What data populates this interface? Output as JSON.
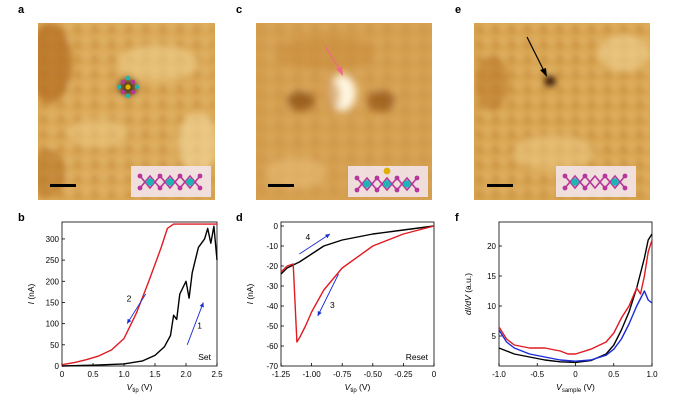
{
  "panel_labels": [
    "a",
    "b",
    "c",
    "d",
    "e",
    "f"
  ],
  "images": [
    {
      "label": "a",
      "marker": "atom-cluster"
    },
    {
      "label": "c",
      "marker": "pink-arrow"
    },
    {
      "label": "e",
      "marker": "black-arrow"
    }
  ],
  "colors": {
    "red": "#e01b22",
    "black": "#000000",
    "blue": "#1a2bd6",
    "stm_base": "#d9a24a",
    "inset_teal": "#1fb5b5",
    "inset_magenta": "#b7369c",
    "inset_gold": "#e0b000"
  },
  "chart_data": [
    {
      "label": "b",
      "type": "line",
      "xlabel_main": "V",
      "xlabel_sub": "tip",
      "xlabel_unit": " (V)",
      "ylabel_main": "I",
      "ylabel_unit": " (nA)",
      "xlim": [
        0,
        2.5
      ],
      "ylim": [
        0,
        340
      ],
      "xticks": [
        "0",
        "0.5",
        "1.0",
        "1.5",
        "2.0",
        "2.5"
      ],
      "xtick_values": [
        0,
        0.5,
        1.0,
        1.5,
        2.0,
        2.5
      ],
      "yticks": [
        "0",
        "50",
        "100",
        "150",
        "200",
        "250",
        "300"
      ],
      "ytick_values": [
        0,
        50,
        100,
        150,
        200,
        250,
        300
      ],
      "annotation": "Set",
      "arrows": [
        {
          "text": "2",
          "color": "#1a2bd6",
          "from": [
            1.35,
            170
          ],
          "to": [
            1.05,
            100
          ],
          "text_at": [
            1.08,
            152
          ]
        },
        {
          "text": "1",
          "color": "#1a2bd6",
          "from": [
            2.02,
            50
          ],
          "to": [
            2.28,
            150
          ],
          "text_at": [
            2.22,
            88
          ]
        }
      ],
      "series": [
        {
          "color": "#e01b22",
          "x": [
            0,
            0.2,
            0.4,
            0.6,
            0.8,
            1.0,
            1.2,
            1.4,
            1.6,
            1.7,
            1.8,
            2.0,
            2.2,
            2.4,
            2.5
          ],
          "y": [
            3,
            8,
            15,
            24,
            38,
            65,
            125,
            200,
            280,
            325,
            335,
            335,
            335,
            335,
            335
          ]
        },
        {
          "color": "#000000",
          "x": [
            0,
            0.5,
            1.0,
            1.3,
            1.5,
            1.65,
            1.75,
            1.8,
            1.85,
            1.9,
            2.0,
            2.05,
            2.1,
            2.2,
            2.3,
            2.35,
            2.4,
            2.45,
            2.5
          ],
          "y": [
            0,
            2,
            5,
            12,
            25,
            45,
            72,
            120,
            110,
            170,
            200,
            160,
            220,
            280,
            300,
            325,
            290,
            330,
            250
          ]
        }
      ]
    },
    {
      "label": "d",
      "type": "line",
      "xlabel_main": "V",
      "xlabel_sub": "tip",
      "xlabel_unit": " (V)",
      "ylabel_main": "I",
      "ylabel_unit": " (nA)",
      "xlim": [
        -1.25,
        0
      ],
      "ylim": [
        -70,
        2
      ],
      "xticks": [
        "-1.25",
        "-1.00",
        "-0.75",
        "-0.50",
        "-0.25",
        "0"
      ],
      "xtick_values": [
        -1.25,
        -1.0,
        -0.75,
        -0.5,
        -0.25,
        0
      ],
      "yticks": [
        "0",
        "-10",
        "-20",
        "-30",
        "-40",
        "-50",
        "-60",
        "-70"
      ],
      "ytick_values": [
        0,
        -10,
        -20,
        -30,
        -40,
        -50,
        -60,
        -70
      ],
      "annotation": "Reset",
      "arrows": [
        {
          "text": "4",
          "color": "#1a2bd6",
          "from": [
            -1.1,
            -14
          ],
          "to": [
            -0.85,
            -4
          ],
          "text_at": [
            -1.03,
            -7
          ]
        },
        {
          "text": "3",
          "color": "#1a2bd6",
          "from": [
            -0.78,
            -24
          ],
          "to": [
            -0.95,
            -45
          ],
          "text_at": [
            -0.83,
            -41
          ]
        }
      ],
      "series": [
        {
          "color": "#000000",
          "x": [
            -1.25,
            -1.2,
            -1.1,
            -1.0,
            -0.9,
            -0.75,
            -0.5,
            -0.25,
            0
          ],
          "y": [
            -24,
            -21,
            -18,
            -14,
            -10,
            -7,
            -4,
            -2,
            0
          ]
        },
        {
          "color": "#e01b22",
          "x": [
            -1.25,
            -1.2,
            -1.15,
            -1.12,
            -1.1,
            -1.05,
            -1.0,
            -0.9,
            -0.75,
            -0.5,
            -0.25,
            0
          ],
          "y": [
            -23,
            -20,
            -19,
            -58,
            -56,
            -50,
            -43,
            -32,
            -21,
            -10,
            -4,
            0
          ]
        }
      ]
    },
    {
      "label": "f",
      "type": "line",
      "xlabel_main": "V",
      "xlabel_sub": "sample",
      "xlabel_unit": " (V)",
      "ylabel_main": "dI/dV",
      "ylabel_unit": " (a.u.)",
      "xlim": [
        -1.0,
        1.0
      ],
      "ylim": [
        0,
        24
      ],
      "xticks": [
        "-1.0",
        "-0.5",
        "0",
        "0.5",
        "1.0"
      ],
      "xtick_values": [
        -1.0,
        -0.5,
        0,
        0.5,
        1.0
      ],
      "yticks": [
        "5",
        "10",
        "15",
        "20"
      ],
      "ytick_values": [
        5,
        10,
        15,
        20
      ],
      "arrows": [],
      "series": [
        {
          "color": "#000000",
          "x": [
            -1.0,
            -0.9,
            -0.8,
            -0.6,
            -0.4,
            -0.2,
            0.0,
            0.2,
            0.4,
            0.5,
            0.6,
            0.7,
            0.8,
            0.9,
            0.95,
            1.0
          ],
          "y": [
            3,
            2.5,
            2,
            1.5,
            1,
            0.7,
            0.6,
            0.9,
            2,
            3.5,
            6,
            9,
            13,
            18,
            21,
            22
          ]
        },
        {
          "color": "#e01b22",
          "x": [
            -1.0,
            -0.9,
            -0.8,
            -0.6,
            -0.4,
            -0.2,
            -0.1,
            0.0,
            0.2,
            0.4,
            0.5,
            0.6,
            0.7,
            0.8,
            0.85,
            0.9,
            0.95,
            1.0
          ],
          "y": [
            6.5,
            4.5,
            3.5,
            3,
            3,
            2.5,
            2,
            2,
            2.8,
            4,
            5.5,
            8,
            10,
            13,
            12,
            15,
            19,
            21
          ]
        },
        {
          "color": "#1a2bd6",
          "x": [
            -1.0,
            -0.9,
            -0.8,
            -0.6,
            -0.4,
            -0.2,
            0.0,
            0.2,
            0.4,
            0.5,
            0.6,
            0.7,
            0.8,
            0.9,
            0.95,
            1.0
          ],
          "y": [
            6,
            4,
            3,
            2,
            1.5,
            1,
            0.8,
            1,
            1.8,
            2.8,
            4.5,
            7,
            10,
            12.5,
            11,
            10.5
          ]
        }
      ]
    }
  ]
}
